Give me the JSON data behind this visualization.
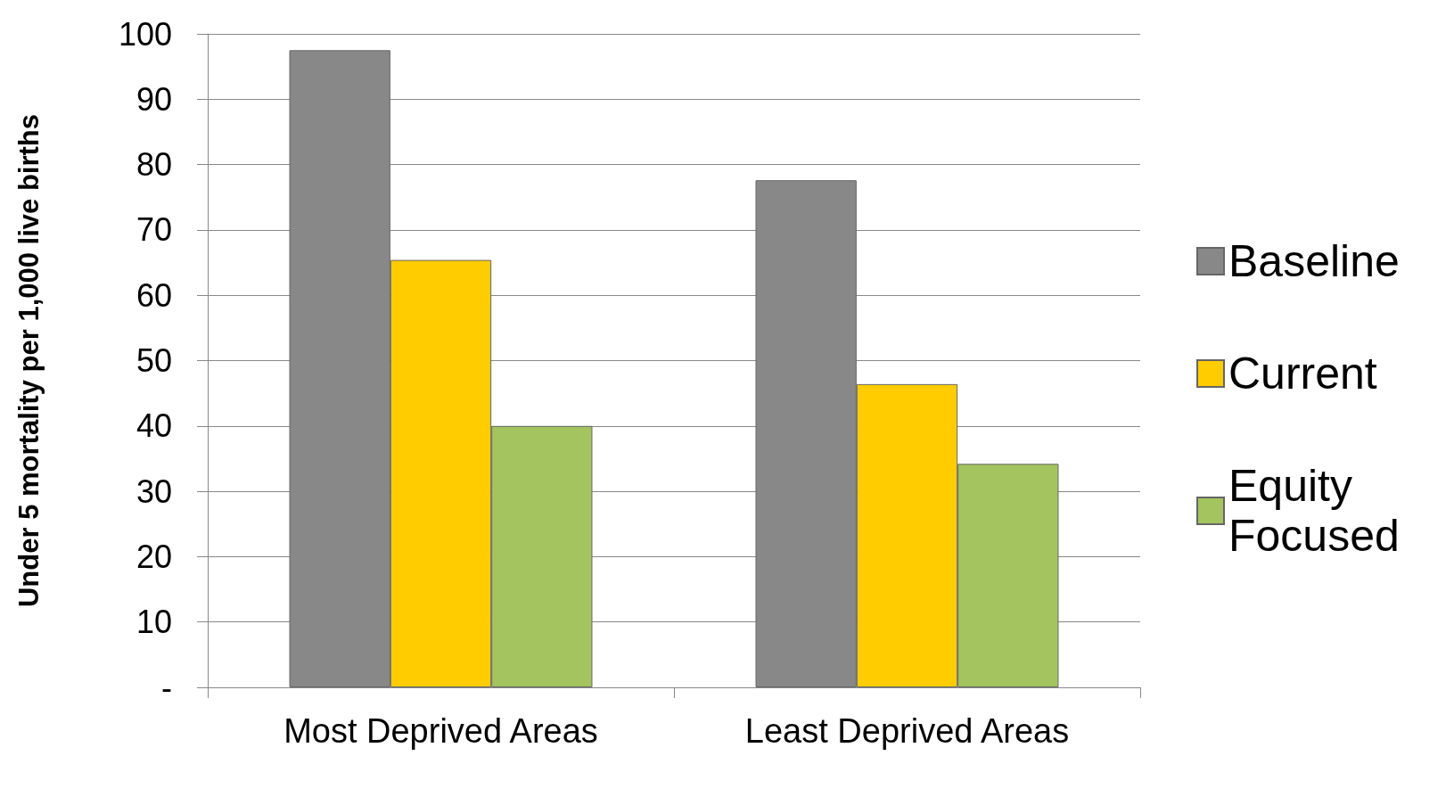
{
  "chart_data": {
    "type": "bar",
    "ylabel": "Under 5 mortality per 1,000 live births",
    "categories": [
      "Most Deprived Areas",
      "Least Deprived Areas"
    ],
    "series": [
      {
        "name": "Baseline",
        "color": "#888888",
        "values": [
          97.5,
          77.6
        ]
      },
      {
        "name": "Current",
        "color": "#ffcc00",
        "values": [
          65.4,
          46.4
        ]
      },
      {
        "name": "Equity Focused",
        "color": "#a3c45e",
        "values": [
          40,
          34.2
        ]
      }
    ],
    "ylim": [
      0,
      100
    ],
    "yticks": [
      {
        "value": 0,
        "label": "-"
      },
      10,
      20,
      30,
      40,
      50,
      60,
      70,
      80,
      90,
      100
    ],
    "grid": "y",
    "legend": "right"
  }
}
